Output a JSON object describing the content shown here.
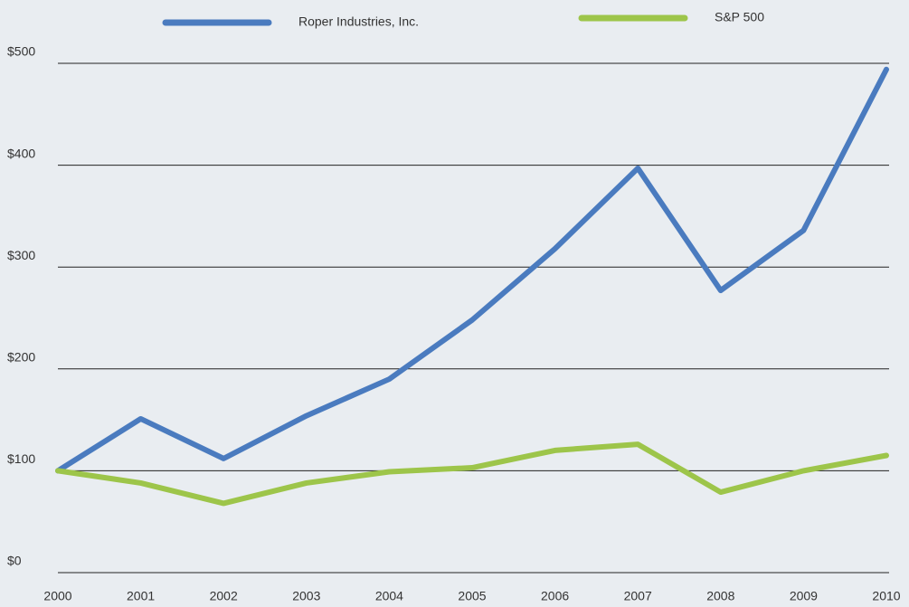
{
  "chart_data": {
    "type": "line",
    "categories": [
      "2000",
      "2001",
      "2002",
      "2003",
      "2004",
      "2005",
      "2006",
      "2007",
      "2008",
      "2009",
      "2010"
    ],
    "series": [
      {
        "name": "Roper Industries, Inc.",
        "color": "#4a7bbf",
        "values": [
          100,
          151,
          112,
          154,
          190,
          248,
          318,
          397,
          277,
          336,
          494
        ]
      },
      {
        "name": "S&P 500",
        "color": "#9dc54a",
        "values": [
          100,
          88,
          68,
          88,
          99,
          103,
          120,
          126,
          79,
          100,
          115
        ]
      }
    ],
    "ylim": [
      0,
      500
    ],
    "yticks": [
      {
        "value": 0,
        "label": "$0"
      },
      {
        "value": 100,
        "label": "$100"
      },
      {
        "value": 200,
        "label": "$200"
      },
      {
        "value": 300,
        "label": "$300"
      },
      {
        "value": 400,
        "label": "$400"
      },
      {
        "value": 500,
        "label": "$500"
      }
    ],
    "grid": true,
    "legend": "top"
  }
}
